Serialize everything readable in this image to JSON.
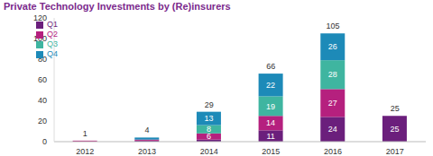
{
  "chart_data": {
    "type": "bar",
    "title": "Private Technology Investments by (Re)insurers",
    "categories": [
      "2012",
      "2013",
      "2014",
      "2015",
      "2016",
      "2017"
    ],
    "series": [
      {
        "name": "Q1",
        "color": "#6b1f7c",
        "values": [
          0,
          1,
          2,
          11,
          24,
          25
        ],
        "value_labels": [
          null,
          null,
          null,
          "11",
          "24",
          "25"
        ]
      },
      {
        "name": "Q2",
        "color": "#b5207e",
        "values": [
          1,
          1,
          6,
          14,
          27,
          0
        ],
        "value_labels": [
          null,
          null,
          "6",
          "14",
          "27",
          null
        ]
      },
      {
        "name": "Q3",
        "color": "#3fb5a0",
        "values": [
          0,
          0,
          8,
          19,
          28,
          0
        ],
        "value_labels": [
          null,
          null,
          "8",
          "19",
          "28",
          null
        ]
      },
      {
        "name": "Q4",
        "color": "#1d8ab8",
        "values": [
          0,
          2,
          13,
          22,
          26,
          0
        ],
        "value_labels": [
          null,
          null,
          "13",
          "22",
          "26",
          null
        ]
      }
    ],
    "totals": [
      1,
      4,
      29,
      66,
      105,
      25
    ],
    "ylim": [
      0,
      120
    ],
    "yticks": [
      0,
      20,
      40,
      60,
      80,
      100,
      120
    ],
    "stacked": true,
    "data_labels": true,
    "legend": "upper left",
    "grid": false
  }
}
